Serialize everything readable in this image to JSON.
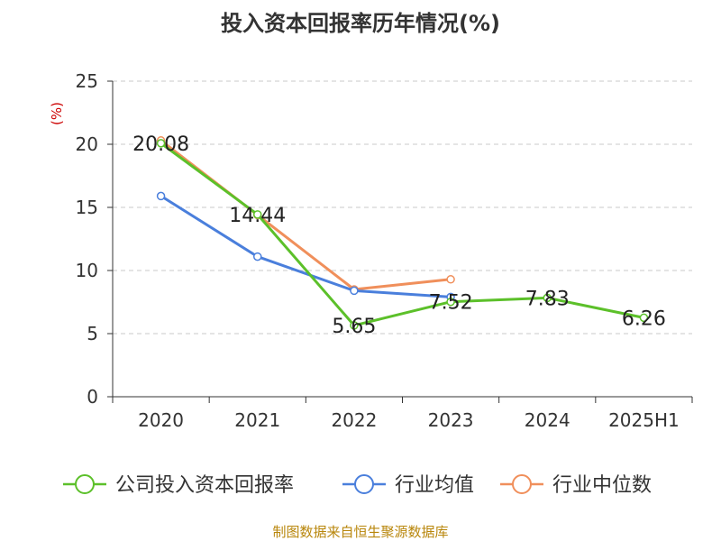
{
  "chart_data": {
    "type": "line",
    "title": "投入资本回报率历年情况(%)",
    "ylabel": "(%)",
    "xlabel": "",
    "categories": [
      "2020",
      "2021",
      "2022",
      "2023",
      "2024",
      "2025H1"
    ],
    "ylim": [
      0,
      25
    ],
    "yticks": [
      0,
      5,
      10,
      15,
      20,
      25
    ],
    "grid": true,
    "legend_position": "bottom",
    "series": [
      {
        "name": "公司投入资本回报率",
        "color": "#5cc02a",
        "values": [
          20.08,
          14.44,
          5.65,
          7.52,
          7.83,
          6.26
        ],
        "labels": [
          "20.08",
          "14.44",
          "5.65",
          "7.52",
          "7.83",
          "6.26"
        ]
      },
      {
        "name": "行业均值",
        "color": "#4a7fdc",
        "values": [
          15.9,
          11.1,
          8.4,
          7.9,
          null,
          null
        ]
      },
      {
        "name": "行业中位数",
        "color": "#f08f5b",
        "values": [
          20.3,
          14.4,
          8.5,
          9.3,
          null,
          null
        ]
      }
    ]
  },
  "source": "制图数据来自恒生聚源数据库"
}
